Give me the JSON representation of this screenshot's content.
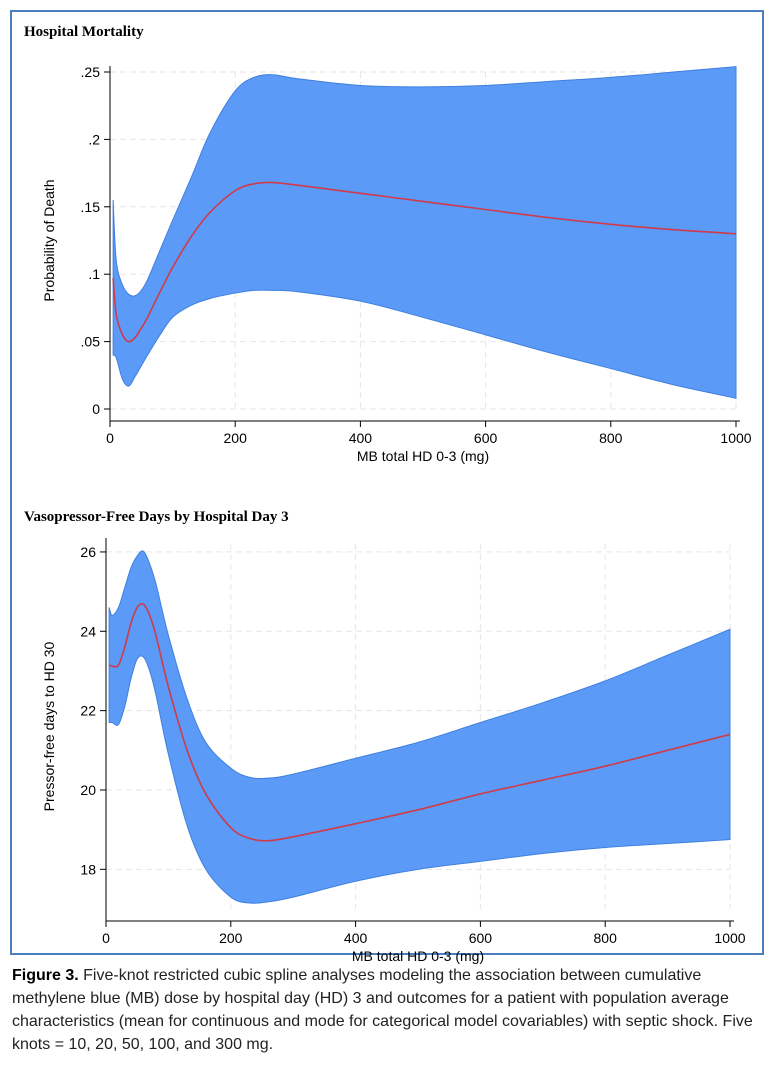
{
  "caption": {
    "label": "Figure 3.",
    "text": "Five-knot restricted cubic spline analyses modeling the association between cumulative methylene blue (MB) dose by hospital day (HD) 3 and outcomes for a patient with population average characteristics (mean for continuous and mode for categorical model covariables) with septic shock. Five knots = 10, 20, 50, 100, and 300 mg."
  },
  "colors": {
    "band": "#5b9bf7",
    "band_edge": "#3f7fe0",
    "line": "#d03a4a",
    "grid": "#e6e6e6",
    "frame": "#4a7fc0"
  },
  "chart_data": [
    {
      "type": "line",
      "title": "Hospital Mortality",
      "xlabel": "MB total HD 0-3 (mg)",
      "ylabel": "Probability of Death",
      "xlim": [
        0,
        1000
      ],
      "ylim": [
        0,
        0.25
      ],
      "xticks": [
        0,
        200,
        400,
        600,
        800,
        1000
      ],
      "xtick_labels": [
        "0",
        "200",
        "400",
        "600",
        "800",
        "1000"
      ],
      "yticks": [
        0,
        0.05,
        0.1,
        0.15,
        0.2,
        0.25
      ],
      "ytick_labels": [
        "0",
        ".05",
        ".1",
        ".15",
        ".2",
        ".25"
      ],
      "x": [
        5,
        10,
        20,
        30,
        40,
        50,
        60,
        80,
        100,
        130,
        160,
        200,
        230,
        260,
        300,
        400,
        500,
        600,
        700,
        800,
        900,
        1000
      ],
      "series": [
        {
          "name": "estimate",
          "values": [
            0.097,
            0.07,
            0.055,
            0.05,
            0.053,
            0.06,
            0.068,
            0.087,
            0.105,
            0.128,
            0.146,
            0.162,
            0.167,
            0.168,
            0.166,
            0.16,
            0.154,
            0.148,
            0.142,
            0.137,
            0.133,
            0.13
          ]
        },
        {
          "name": "upper_ci",
          "values": [
            0.155,
            0.11,
            0.092,
            0.085,
            0.084,
            0.088,
            0.096,
            0.118,
            0.14,
            0.172,
            0.205,
            0.236,
            0.246,
            0.248,
            0.245,
            0.24,
            0.239,
            0.24,
            0.243,
            0.246,
            0.25,
            0.254
          ]
        },
        {
          "name": "lower_ci",
          "values": [
            0.04,
            0.038,
            0.022,
            0.017,
            0.024,
            0.032,
            0.04,
            0.055,
            0.068,
            0.077,
            0.082,
            0.086,
            0.088,
            0.088,
            0.087,
            0.08,
            0.068,
            0.055,
            0.042,
            0.03,
            0.018,
            0.008
          ]
        }
      ]
    },
    {
      "type": "line",
      "title": "Vasopressor-Free Days by Hospital Day 3",
      "xlabel": "MB total HD 0-3 (mg)",
      "ylabel": "Pressor-free days to HD 30",
      "xlim": [
        0,
        1000
      ],
      "ylim": [
        17,
        26.2
      ],
      "xticks": [
        0,
        200,
        400,
        600,
        800,
        1000
      ],
      "xtick_labels": [
        "0",
        "200",
        "400",
        "600",
        "800",
        "1000"
      ],
      "yticks": [
        18,
        20,
        22,
        24,
        26
      ],
      "ytick_labels": [
        "18",
        "20",
        "22",
        "24",
        "26"
      ],
      "x": [
        5,
        10,
        20,
        30,
        40,
        50,
        60,
        70,
        80,
        100,
        130,
        160,
        200,
        230,
        260,
        300,
        400,
        500,
        600,
        700,
        800,
        900,
        1000
      ],
      "series": [
        {
          "name": "estimate",
          "values": [
            23.15,
            23.12,
            23.15,
            23.6,
            24.2,
            24.6,
            24.68,
            24.4,
            23.9,
            22.6,
            21.0,
            19.9,
            19.05,
            18.78,
            18.72,
            18.82,
            19.15,
            19.5,
            19.9,
            20.25,
            20.6,
            21.0,
            21.4
          ]
        },
        {
          "name": "upper_ci",
          "values": [
            24.6,
            24.4,
            24.6,
            25.1,
            25.6,
            25.9,
            26.02,
            25.7,
            25.2,
            23.9,
            22.3,
            21.2,
            20.55,
            20.32,
            20.3,
            20.4,
            20.8,
            21.2,
            21.7,
            22.2,
            22.75,
            23.4,
            24.05
          ]
        },
        {
          "name": "lower_ci",
          "values": [
            21.7,
            21.7,
            21.65,
            22.1,
            22.8,
            23.3,
            23.35,
            23.0,
            22.4,
            20.9,
            19.1,
            18.0,
            17.3,
            17.15,
            17.18,
            17.3,
            17.7,
            18.0,
            18.2,
            18.4,
            18.55,
            18.65,
            18.75
          ]
        }
      ]
    }
  ]
}
